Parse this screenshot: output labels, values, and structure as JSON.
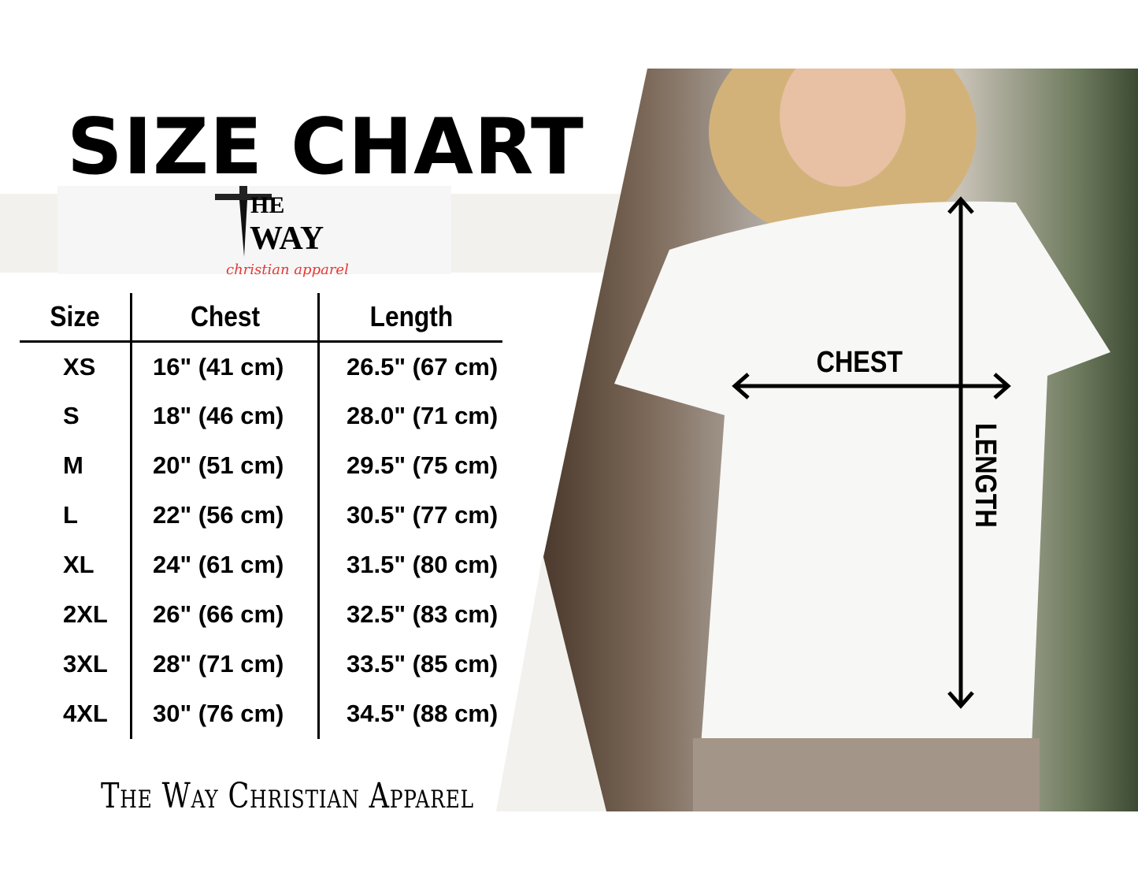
{
  "title": "SIZE CHART",
  "logo": {
    "line1": "HE",
    "line2": "WAY",
    "tagline": "christian apparel",
    "tagline_color": "#e53935"
  },
  "table": {
    "headers": [
      "Size",
      "Chest",
      "Length"
    ],
    "rows": [
      [
        "XS",
        "16\" (41 cm)",
        "26.5\" (67 cm)"
      ],
      [
        "S",
        "18\" (46 cm)",
        "28.0\" (71 cm)"
      ],
      [
        "M",
        "20\" (51 cm)",
        "29.5\" (75 cm)"
      ],
      [
        "L",
        "22\" (56 cm)",
        "30.5\" (77 cm)"
      ],
      [
        "XL",
        "24\" (61 cm)",
        "31.5\" (80 cm)"
      ],
      [
        "2XL",
        "26\" (66 cm)",
        "32.5\" (83 cm)"
      ],
      [
        "3XL",
        "28\" (71 cm)",
        "33.5\" (85 cm)"
      ],
      [
        "4XL",
        "30\" (76 cm)",
        "34.5\" (88 cm)"
      ]
    ]
  },
  "footer": "The Way Christian Apparel",
  "diagram": {
    "chest_label": "CHEST",
    "length_label": "LENGTH"
  }
}
